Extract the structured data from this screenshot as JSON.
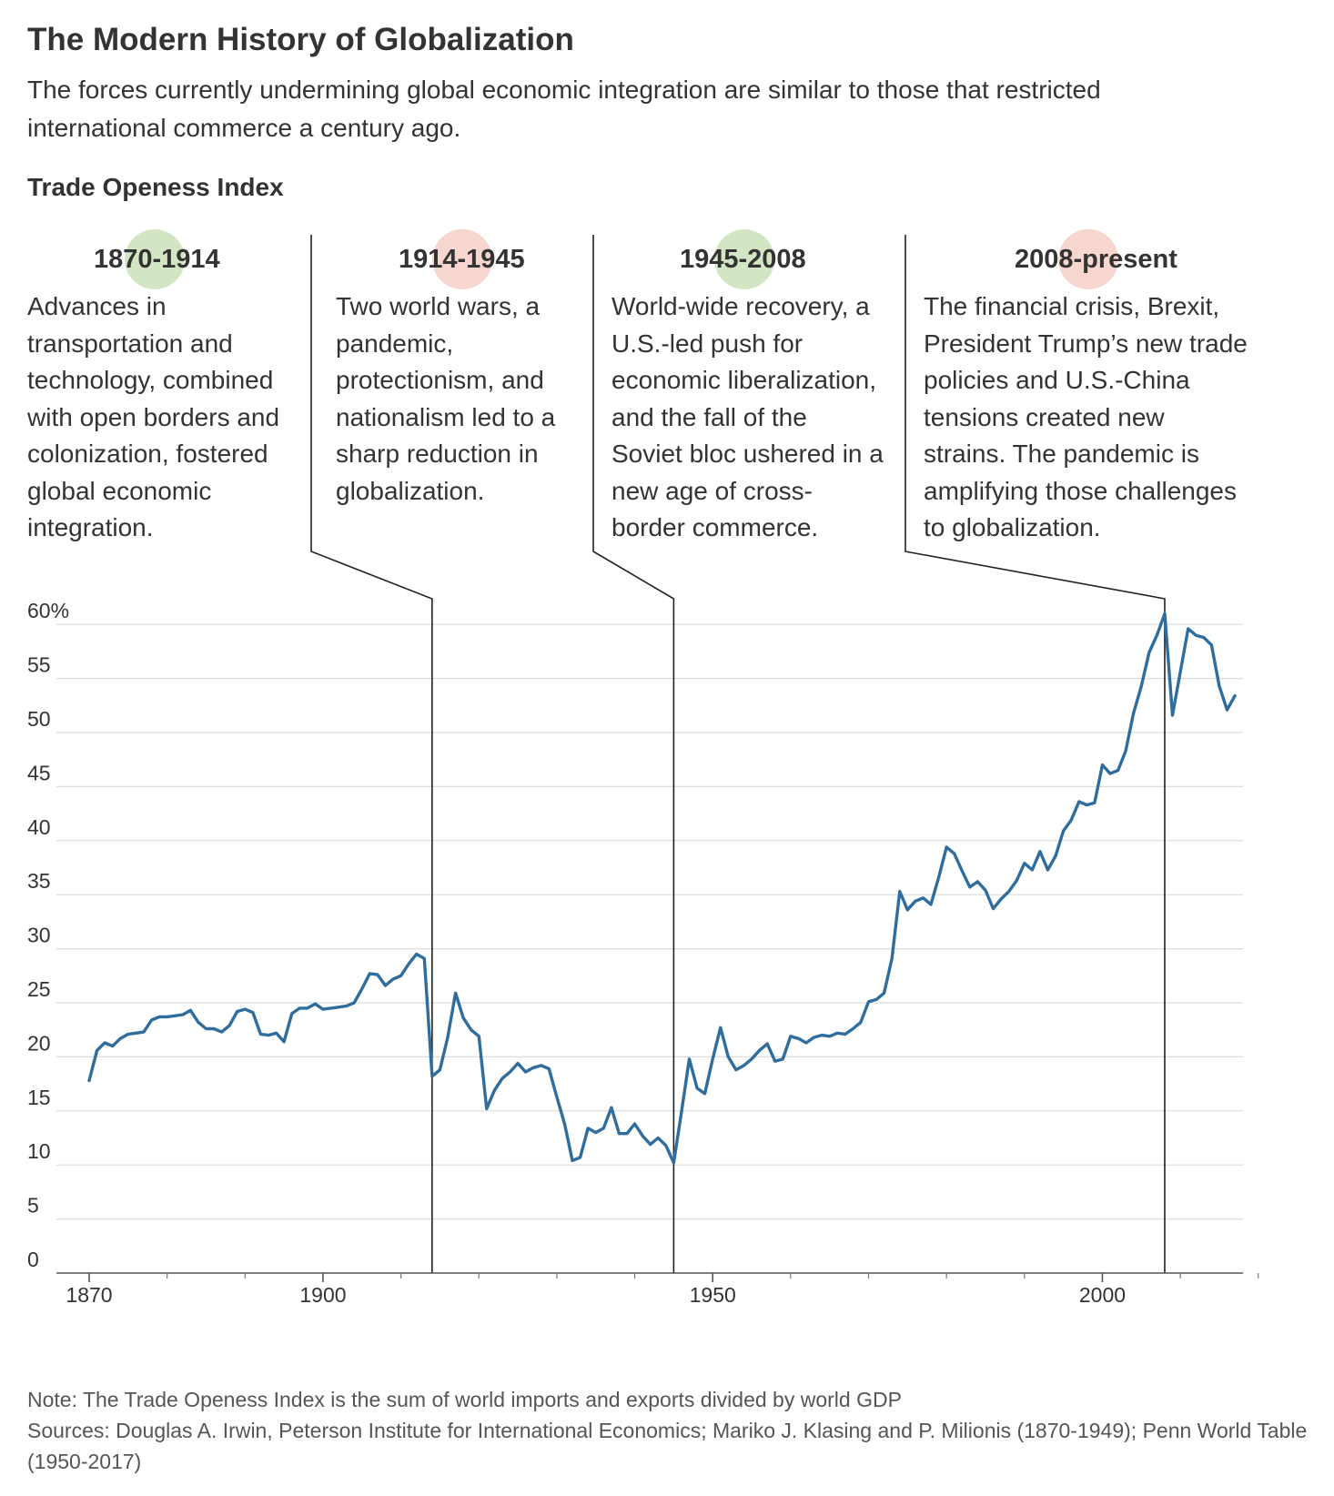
{
  "title": "The Modern History of Globalization",
  "subtitle": "The forces currently undermining global economic integration are similar to those that restricted international commerce a century ago.",
  "chart_label": "Trade Openess Index",
  "eras": [
    {
      "period": "1870-1914",
      "text": "Advances in transportation and technology, combined with open borders and colonization, fostered global economic integration.",
      "color": "#d3e6c4"
    },
    {
      "period": "1914-1945",
      "text": "Two world wars, a pandemic, protectionism, and nationalism led to a sharp reduction in globalization.",
      "color": "#f6d6cf"
    },
    {
      "period": "1945-2008",
      "text": "World-wide recovery, a U.S.-led push for economic liberalization, and the fall of the Soviet bloc ushered in a new age of cross-border commerce.",
      "color": "#d3e6c4"
    },
    {
      "period": "2008-present",
      "text": "The financial crisis, Brexit, President Trump’s new trade policies and U.S.-China tensions created new strains. The pandemic is amplifying those challenges to globalization.",
      "color": "#f6d6cf"
    }
  ],
  "note": "Note: The Trade Openess Index is the sum of world imports and exports divided by world GDP",
  "sources": "Sources: Douglas A. Irwin, Peterson Institute for International Economics; Mariko J. Klasing and P. Milionis (1870-1949); Penn World Table (1950-2017)",
  "chart_data": {
    "type": "line",
    "title": "Trade Openess Index",
    "line_color": "#2e6d9e",
    "xlim": [
      1870,
      2022
    ],
    "ylim": [
      0,
      60
    ],
    "grid": true,
    "x_ticks": [
      {
        "value": 1870,
        "label": "1870"
      },
      {
        "value": 1900,
        "label": "1900"
      },
      {
        "value": 1950,
        "label": "1950"
      },
      {
        "value": 2000,
        "label": "2000"
      }
    ],
    "x_minor_ticks": [
      1880,
      1890,
      1910,
      1920,
      1930,
      1940,
      1960,
      1970,
      1980,
      1990,
      2010,
      2020
    ],
    "y_ticks": [
      {
        "value": 0,
        "label": "0"
      },
      {
        "value": 5,
        "label": "5"
      },
      {
        "value": 10,
        "label": "10"
      },
      {
        "value": 15,
        "label": "15"
      },
      {
        "value": 20,
        "label": "20"
      },
      {
        "value": 25,
        "label": "25"
      },
      {
        "value": 30,
        "label": "30"
      },
      {
        "value": 35,
        "label": "35"
      },
      {
        "value": 40,
        "label": "40"
      },
      {
        "value": 45,
        "label": "45"
      },
      {
        "value": 50,
        "label": "50"
      },
      {
        "value": 55,
        "label": "55"
      },
      {
        "value": 60,
        "label": "60%"
      }
    ],
    "era_boundaries": [
      1914,
      1945,
      2008
    ],
    "series": [
      {
        "x": [
          1870,
          1871,
          1872,
          1873,
          1874,
          1875,
          1876,
          1877,
          1878,
          1879,
          1880,
          1881,
          1882,
          1883,
          1884,
          1885,
          1886,
          1887,
          1888,
          1889,
          1890,
          1891,
          1892,
          1893,
          1894,
          1895,
          1896,
          1897,
          1898,
          1899,
          1900,
          1901,
          1902,
          1903,
          1904,
          1905,
          1906,
          1907,
          1908,
          1909,
          1910,
          1911,
          1912,
          1913,
          1914,
          1915,
          1916,
          1917,
          1918,
          1919,
          1920,
          1921,
          1922,
          1923,
          1924,
          1925,
          1926,
          1927,
          1928,
          1929,
          1930,
          1931,
          1932,
          1933,
          1934,
          1935,
          1936,
          1937,
          1938,
          1939,
          1940,
          1941,
          1942,
          1943,
          1944,
          1945,
          1946,
          1947,
          1948,
          1949,
          1950,
          1951,
          1952,
          1953,
          1954,
          1955,
          1956,
          1957,
          1958,
          1959,
          1960,
          1961,
          1962,
          1963,
          1964,
          1965,
          1966,
          1967,
          1968,
          1969,
          1970,
          1971,
          1972,
          1973,
          1974,
          1975,
          1976,
          1977,
          1978,
          1979,
          1980,
          1981,
          1982,
          1983,
          1984,
          1985,
          1986,
          1987,
          1988,
          1989,
          1990,
          1991,
          1992,
          1993,
          1994,
          1995,
          1996,
          1997,
          1998,
          1999,
          2000,
          2001,
          2002,
          2003,
          2004,
          2005,
          2006,
          2007,
          2008,
          2009,
          2010,
          2011,
          2012,
          2013,
          2014,
          2015,
          2016,
          2017
        ],
        "values": [
          17.8,
          20.6,
          21.3,
          21.0,
          21.7,
          22.1,
          22.2,
          22.3,
          23.4,
          23.7,
          23.7,
          23.8,
          23.9,
          24.3,
          23.2,
          22.6,
          22.6,
          22.3,
          22.9,
          24.2,
          24.4,
          24.1,
          22.1,
          22.0,
          22.2,
          21.4,
          24.0,
          24.5,
          24.5,
          24.9,
          24.4,
          24.5,
          24.6,
          24.7,
          25.0,
          26.3,
          27.7,
          27.6,
          26.6,
          27.2,
          27.5,
          28.6,
          29.5,
          29.1,
          18.2,
          18.8,
          21.8,
          25.9,
          23.6,
          22.5,
          21.9,
          15.2,
          16.9,
          18.0,
          18.6,
          19.4,
          18.6,
          19.0,
          19.2,
          18.9,
          16.3,
          13.8,
          10.4,
          10.7,
          13.4,
          13.0,
          13.4,
          15.3,
          12.9,
          12.9,
          13.8,
          12.7,
          11.9,
          12.5,
          11.8,
          10.2,
          14.9,
          19.8,
          17.1,
          16.6,
          19.8,
          22.7,
          20.0,
          18.8,
          19.2,
          19.8,
          20.6,
          21.2,
          19.6,
          19.8,
          21.9,
          21.7,
          21.3,
          21.8,
          22.0,
          21.9,
          22.2,
          22.1,
          22.6,
          23.2,
          25.1,
          25.3,
          25.9,
          29.1,
          35.3,
          33.6,
          34.4,
          34.7,
          34.1,
          36.6,
          39.4,
          38.8,
          37.2,
          35.7,
          36.2,
          35.4,
          33.7,
          34.6,
          35.3,
          36.3,
          37.9,
          37.3,
          39.0,
          37.3,
          38.6,
          40.9,
          41.9,
          43.6,
          43.3,
          43.5,
          47.0,
          46.2,
          46.5,
          48.3,
          51.8,
          54.3,
          57.4,
          59.0,
          61.0,
          51.6,
          55.6,
          59.6,
          59.0,
          58.8,
          58.1,
          54.3,
          52.1,
          53.4
        ]
      }
    ]
  }
}
